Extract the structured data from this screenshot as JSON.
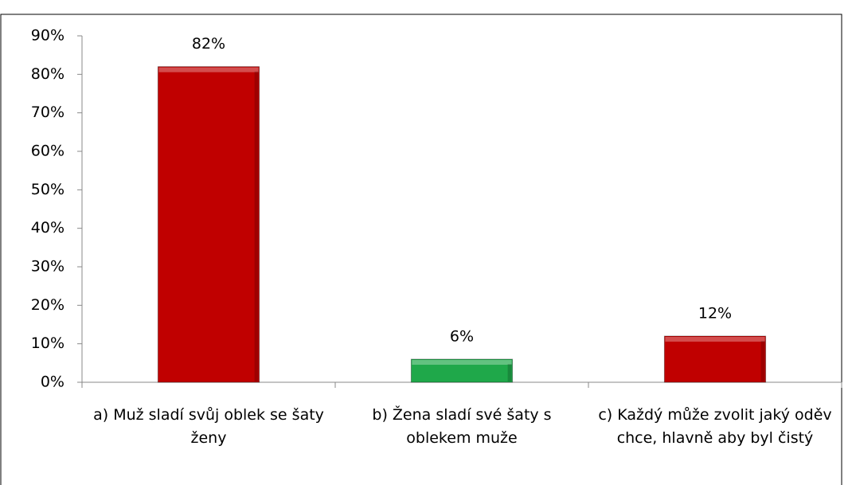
{
  "chart_data": {
    "type": "bar",
    "categories": [
      "a) Muž sladí svůj oblek se šaty ženy",
      "b) Žena sladí své šaty s oblekem muže",
      "c) Každý může zvolit jaký oděv chce, hlavně aby byl čistý"
    ],
    "values": [
      82,
      6,
      12
    ],
    "value_labels": [
      "82%",
      "6%",
      "12%"
    ],
    "colors": [
      "#c00000",
      "#1fa84a",
      "#c00000"
    ],
    "ylim": [
      0,
      90
    ],
    "yticks": [
      {
        "value": 0,
        "label": "0%"
      },
      {
        "value": 10,
        "label": "10%"
      },
      {
        "value": 20,
        "label": "20%"
      },
      {
        "value": 30,
        "label": "30%"
      },
      {
        "value": 40,
        "label": "40%"
      },
      {
        "value": 50,
        "label": "50%"
      },
      {
        "value": 60,
        "label": "60%"
      },
      {
        "value": 70,
        "label": "70%"
      },
      {
        "value": 80,
        "label": "80%"
      },
      {
        "value": 90,
        "label": "90%"
      }
    ],
    "grid": false
  }
}
